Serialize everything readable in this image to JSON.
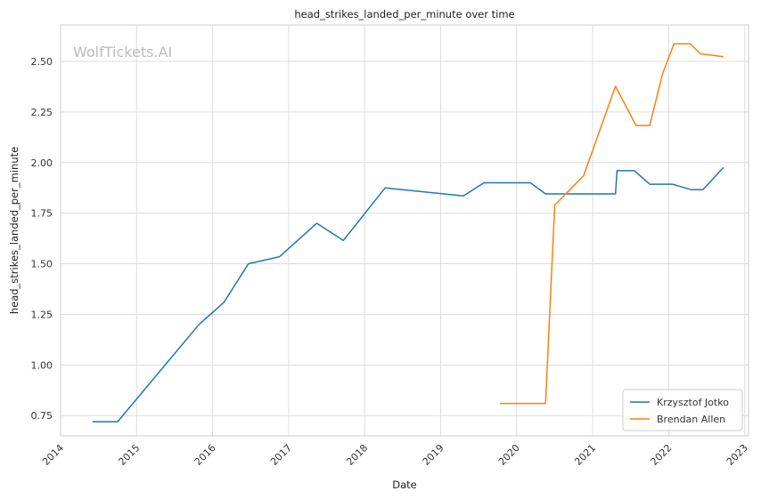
{
  "chart_data": {
    "type": "line",
    "title": "head_strikes_landed_per_minute over time",
    "xlabel": "Date",
    "ylabel": "head_strikes_landed_per_minute",
    "watermark": "WolfTickets.AI",
    "xlim": [
      2014.0,
      2023.05
    ],
    "ylim": [
      0.65,
      2.68
    ],
    "x_ticks": [
      "2014",
      "2015",
      "2016",
      "2017",
      "2018",
      "2019",
      "2020",
      "2021",
      "2022",
      "2023"
    ],
    "y_ticks": [
      "0.75",
      "1.00",
      "1.25",
      "1.50",
      "1.75",
      "2.00",
      "2.25",
      "2.50"
    ],
    "grid": true,
    "legend_position": "bottom-right",
    "series": [
      {
        "name": "Krzysztof Jotko",
        "color": "#1f77b4",
        "x": [
          2014.42,
          2014.75,
          2015.82,
          2016.15,
          2016.47,
          2016.88,
          2017.37,
          2017.72,
          2018.27,
          2019.3,
          2019.57,
          2019.83,
          2020.18,
          2020.38,
          2020.52,
          2021.3,
          2021.32,
          2021.55,
          2021.75,
          2022.05,
          2022.3,
          2022.45,
          2022.72
        ],
        "y": [
          0.72,
          0.72,
          1.2,
          1.31,
          1.5,
          1.535,
          1.7,
          1.615,
          1.875,
          1.835,
          1.9,
          1.9,
          1.9,
          1.845,
          1.845,
          1.845,
          1.96,
          1.96,
          1.893,
          1.893,
          1.866,
          1.866,
          1.975
        ]
      },
      {
        "name": "Brendan Allen",
        "color": "#ff7f0e",
        "x": [
          2019.78,
          2020.38,
          2020.5,
          2020.88,
          2021.3,
          2021.57,
          2021.75,
          2021.92,
          2022.07,
          2022.28,
          2022.42,
          2022.72
        ],
        "y": [
          0.81,
          0.81,
          1.79,
          1.935,
          2.377,
          2.183,
          2.183,
          2.44,
          2.587,
          2.587,
          2.537,
          2.523
        ]
      }
    ]
  }
}
